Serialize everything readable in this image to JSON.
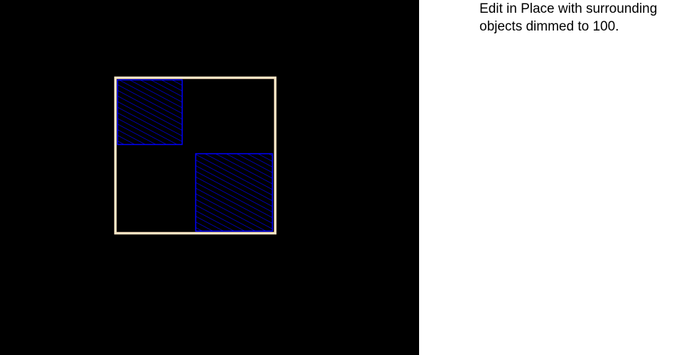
{
  "caption": {
    "text": "Edit in Place with surrounding objects dimmed to 100."
  },
  "canvas": {
    "background_color": "#000000",
    "cell_boundary": {
      "stroke_color": "#fce4c4"
    },
    "shapes": [
      {
        "name": "hatched-rectangle-top-left",
        "stroke_color": "#0000ff",
        "hatch_color": "#0000ff"
      },
      {
        "name": "hatched-rectangle-bottom-right",
        "stroke_color": "#0000ff",
        "hatch_color": "#0000ff"
      }
    ]
  }
}
